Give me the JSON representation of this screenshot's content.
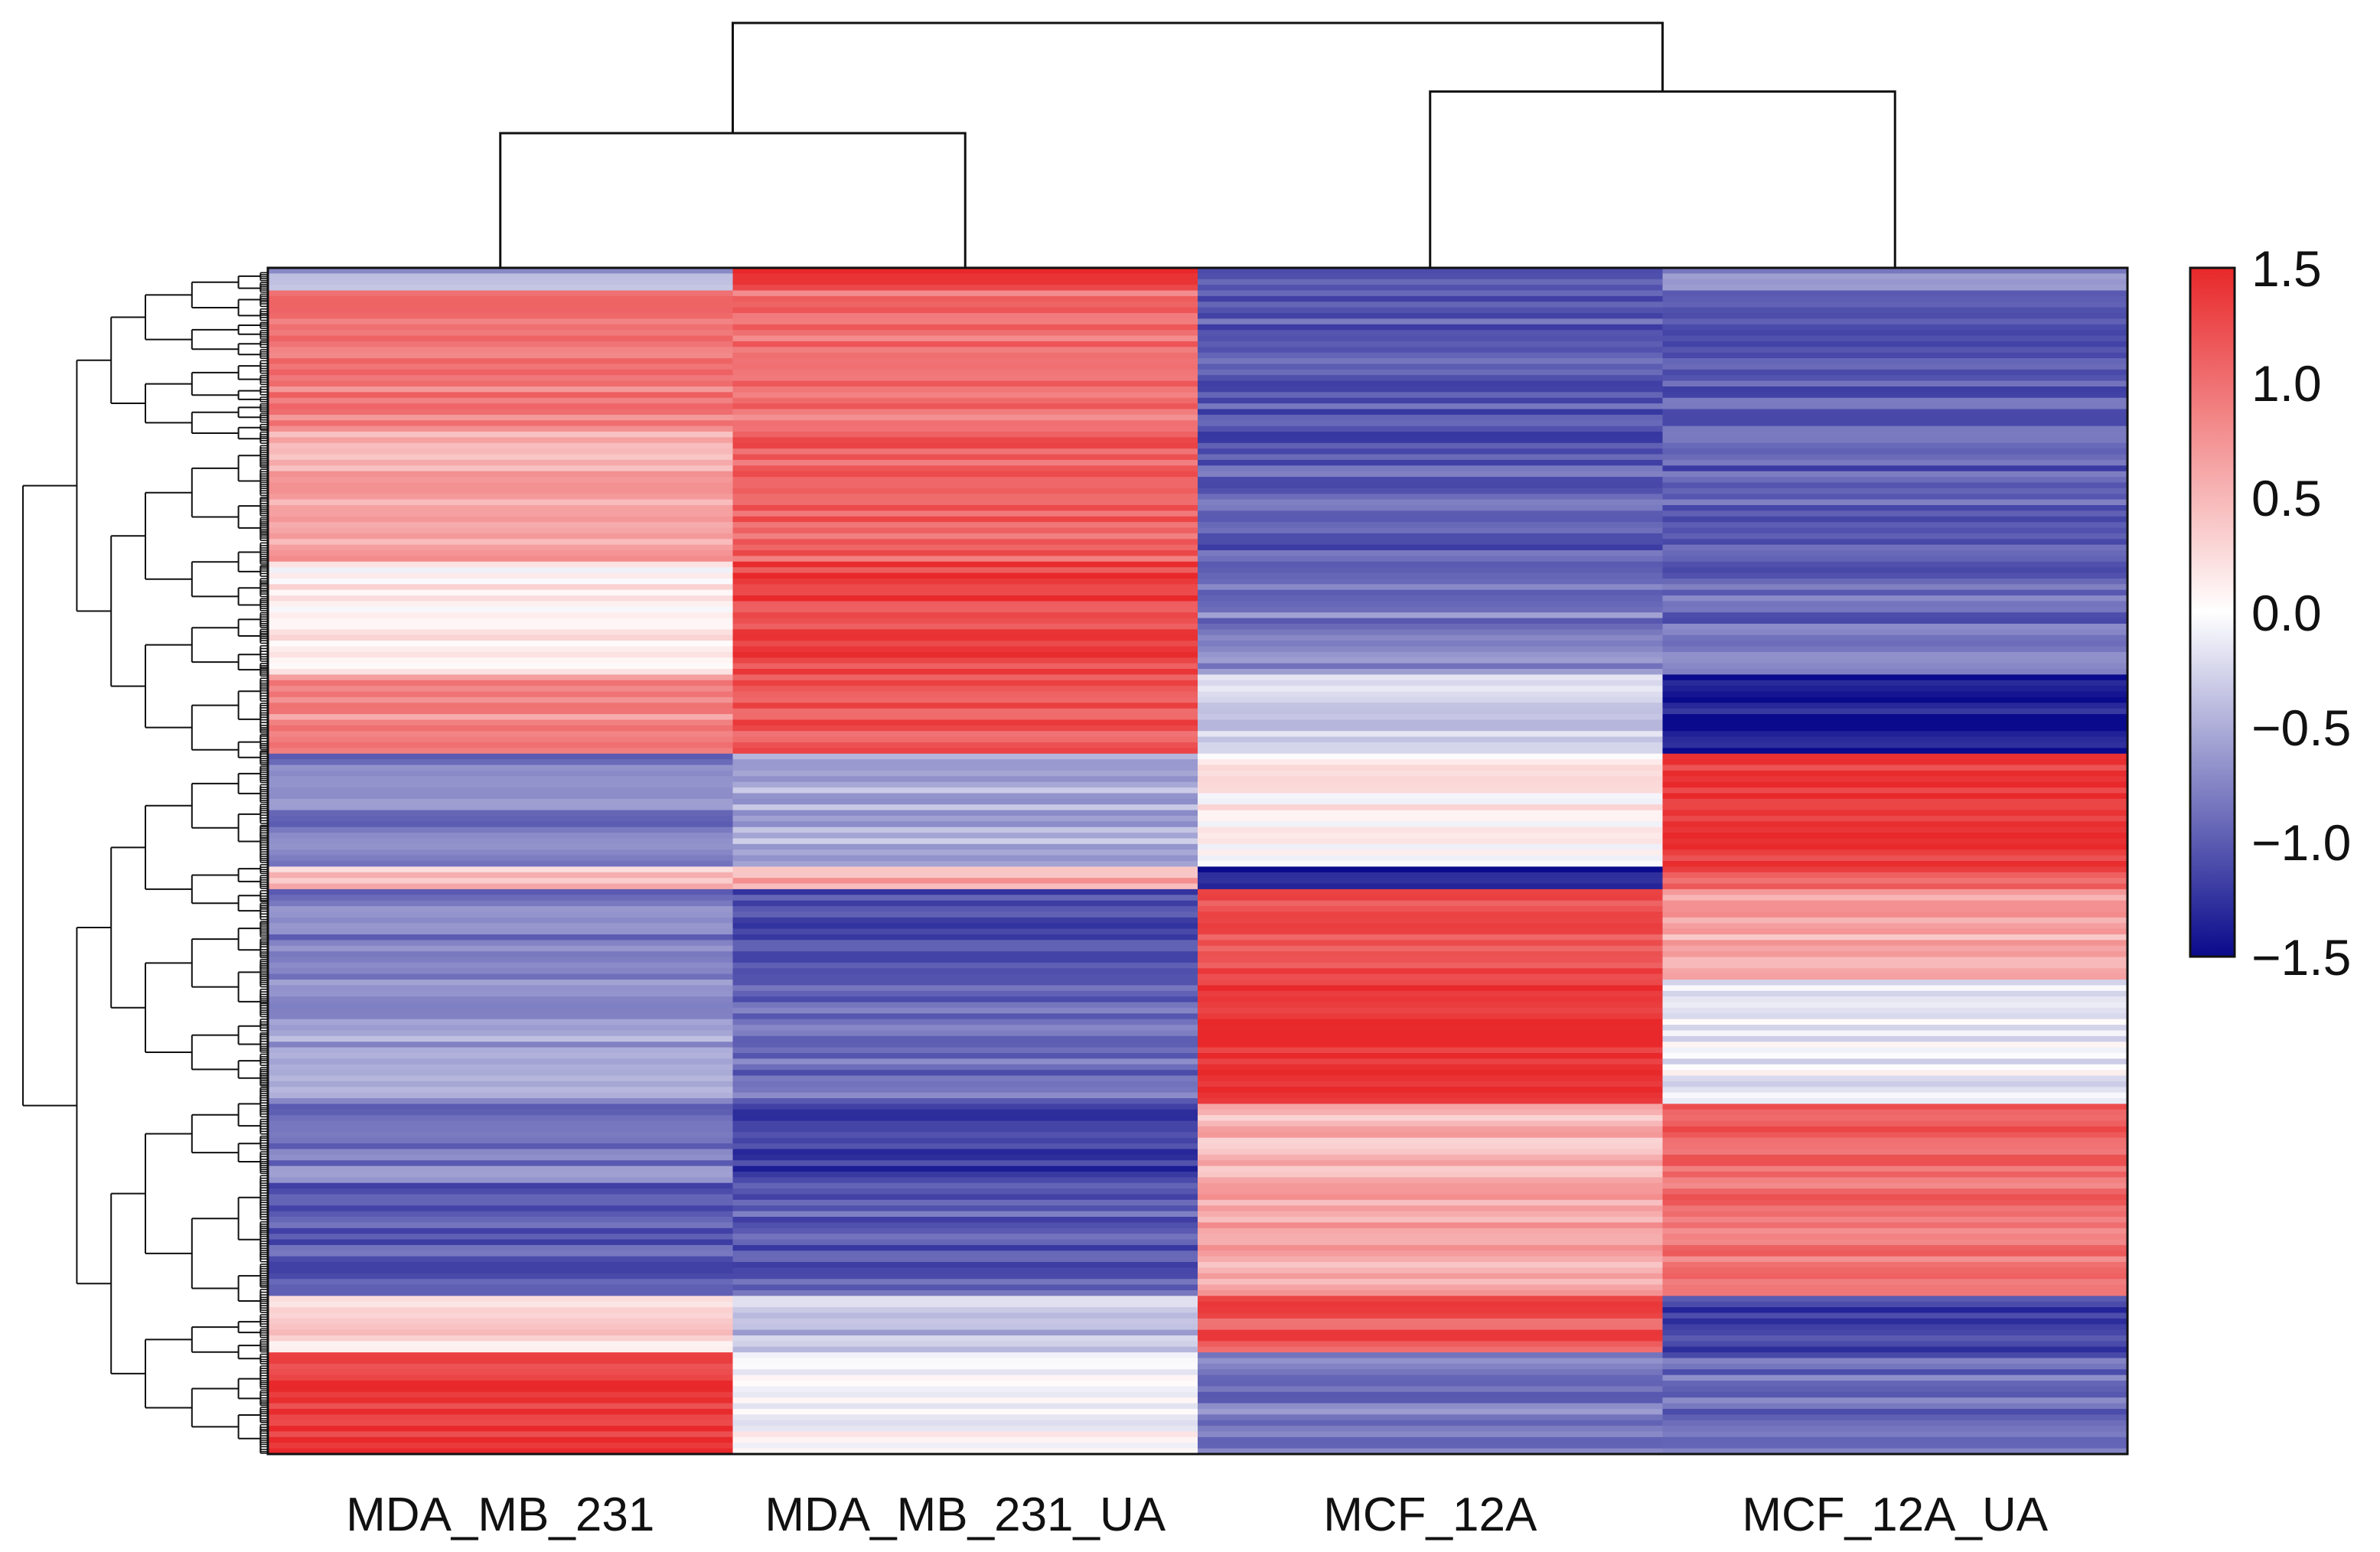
{
  "chart_data": {
    "type": "heatmap",
    "title": "",
    "columns": [
      "MDA_MB_231",
      "MDA_MB_231_UA",
      "MCF_12A",
      "MCF_12A_UA"
    ],
    "column_order_note": "columns clustered: (MDA_MB_231, MDA_MB_231_UA) and (MCF_12A, MCF_12A_UA)",
    "column_dendrogram": {
      "merges": [
        {
          "left": "MDA_MB_231",
          "right": "MDA_MB_231_UA",
          "height": 0.55
        },
        {
          "left": "MCF_12A",
          "right": "MCF_12A_UA",
          "height": 0.72
        },
        {
          "left": "cluster_1",
          "right": "cluster_2",
          "height": 1.0
        }
      ]
    },
    "color_scale": {
      "min": -1.5,
      "max": 1.5,
      "low_color": "#0a0a8c",
      "mid_color": "#ffffff",
      "high_color": "#e8282a",
      "ticks": [
        "1.5",
        "1.0",
        "0.5",
        "0.0",
        "−0.5",
        "−1.0",
        "−1.5"
      ]
    },
    "row_blocks_note": "approximate z-scores per row group (top to bottom); rows are genes, ordered by the row dendrogram",
    "row_blocks": [
      {
        "rows": 4,
        "values": [
          -0.5,
          1.4,
          -1.0,
          -0.7
        ]
      },
      {
        "rows": 24,
        "values": [
          0.9,
          1.0,
          -1.0,
          -1.0
        ]
      },
      {
        "rows": 24,
        "values": [
          0.6,
          1.1,
          -1.0,
          -1.0
        ]
      },
      {
        "rows": 20,
        "values": [
          0.1,
          1.3,
          -0.8,
          -0.9
        ]
      },
      {
        "rows": 14,
        "values": [
          0.8,
          1.2,
          -0.3,
          -1.4
        ]
      },
      {
        "rows": 20,
        "values": [
          -0.8,
          -0.5,
          0.1,
          1.4
        ]
      },
      {
        "rows": 4,
        "values": [
          0.4,
          0.6,
          -1.4,
          1.2
        ]
      },
      {
        "rows": 16,
        "values": [
          -0.8,
          -1.1,
          1.2,
          0.6
        ]
      },
      {
        "rows": 22,
        "values": [
          -0.6,
          -0.9,
          1.4,
          -0.1
        ]
      },
      {
        "rows": 14,
        "values": [
          -0.8,
          -1.2,
          0.5,
          1.1
        ]
      },
      {
        "rows": 20,
        "values": [
          -1.0,
          -1.0,
          0.6,
          1.0
        ]
      },
      {
        "rows": 10,
        "values": [
          0.3,
          -0.4,
          1.2,
          -1.2
        ]
      },
      {
        "rows": 18,
        "values": [
          1.4,
          0.0,
          -0.8,
          -0.9
        ]
      }
    ]
  }
}
